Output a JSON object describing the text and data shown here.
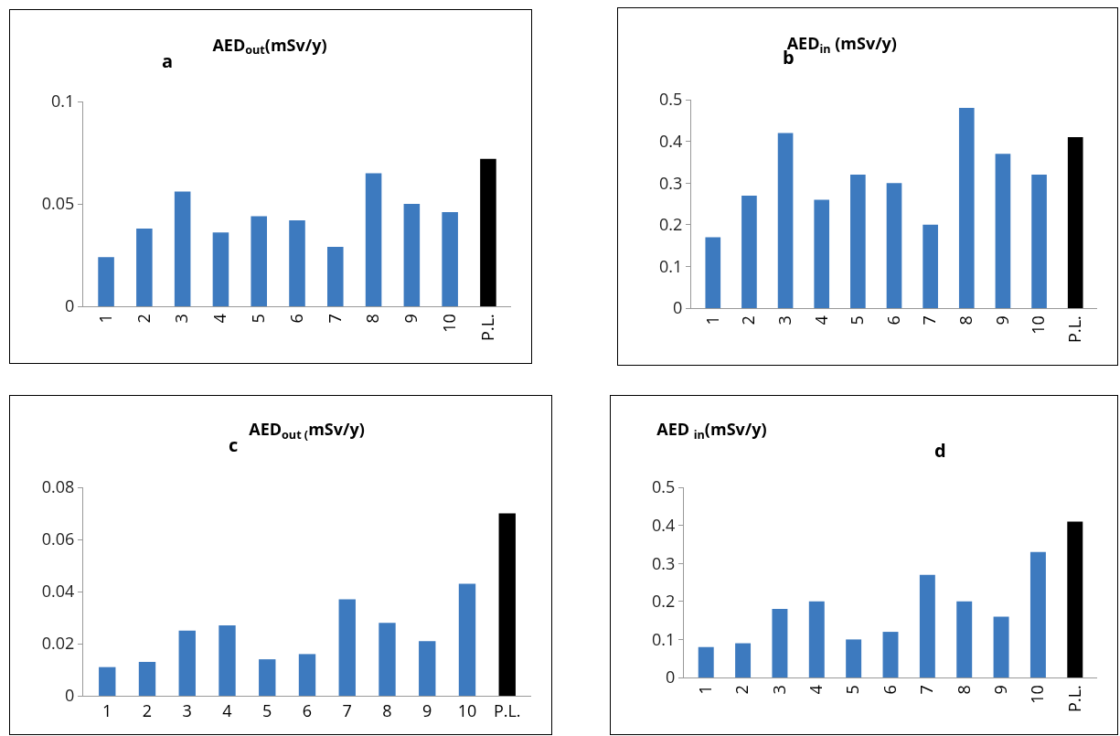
{
  "chart_data": [
    {
      "type": "bar",
      "title": "AED$_{out}$(mSv/y)",
      "annotations": [
        "a"
      ],
      "categories": [
        "1",
        "2",
        "3",
        "4",
        "5",
        "6",
        "7",
        "8",
        "9",
        "10",
        "P.L."
      ],
      "values": [
        0.024,
        0.038,
        0.056,
        0.036,
        0.044,
        0.042,
        0.029,
        0.065,
        0.05,
        0.046,
        0.072
      ],
      "colors": [
        "#3d7abf",
        "#3d7abf",
        "#3d7abf",
        "#3d7abf",
        "#3d7abf",
        "#3d7abf",
        "#3d7abf",
        "#3d7abf",
        "#3d7abf",
        "#3d7abf",
        "#000000"
      ],
      "ylim": [
        0,
        0.1
      ],
      "yticks": [
        0,
        0.05,
        0.1
      ],
      "grid": false,
      "legend": false
    },
    {
      "type": "bar",
      "title": "AED$_{in}$ (mSv/y)",
      "annotations": [
        "b"
      ],
      "categories": [
        "1",
        "2",
        "3",
        "4",
        "5",
        "6",
        "7",
        "8",
        "9",
        "10",
        "P.L."
      ],
      "values": [
        0.17,
        0.27,
        0.42,
        0.26,
        0.32,
        0.3,
        0.2,
        0.48,
        0.37,
        0.32,
        0.41
      ],
      "colors": [
        "#3d7abf",
        "#3d7abf",
        "#3d7abf",
        "#3d7abf",
        "#3d7abf",
        "#3d7abf",
        "#3d7abf",
        "#3d7abf",
        "#3d7abf",
        "#3d7abf",
        "#000000"
      ],
      "ylim": [
        0,
        0.5
      ],
      "yticks": [
        0,
        0.1,
        0.2,
        0.3,
        0.4,
        0.5
      ],
      "grid": false,
      "legend": false
    },
    {
      "type": "bar",
      "title": "AED$_{out (}$mSv/y)",
      "annotations": [
        "c"
      ],
      "categories": [
        "1",
        "2",
        "3",
        "4",
        "5",
        "6",
        "7",
        "8",
        "9",
        "10",
        "P.L."
      ],
      "values": [
        0.011,
        0.013,
        0.025,
        0.027,
        0.014,
        0.016,
        0.037,
        0.028,
        0.021,
        0.043,
        0.07
      ],
      "colors": [
        "#3d7abf",
        "#3d7abf",
        "#3d7abf",
        "#3d7abf",
        "#3d7abf",
        "#3d7abf",
        "#3d7abf",
        "#3d7abf",
        "#3d7abf",
        "#3d7abf",
        "#000000"
      ],
      "ylim": [
        0,
        0.08
      ],
      "yticks": [
        0,
        0.02,
        0.04,
        0.06,
        0.08
      ],
      "grid": false,
      "legend": false
    },
    {
      "type": "bar",
      "title": "AED $_{in}$(mSv/y)",
      "annotations": [
        "d"
      ],
      "categories": [
        "1",
        "2",
        "3",
        "4",
        "5",
        "6",
        "7",
        "8",
        "9",
        "10",
        "P.L."
      ],
      "values": [
        0.08,
        0.09,
        0.18,
        0.2,
        0.1,
        0.12,
        0.27,
        0.2,
        0.16,
        0.33,
        0.41
      ],
      "colors": [
        "#3d7abf",
        "#3d7abf",
        "#3d7abf",
        "#3d7abf",
        "#3d7abf",
        "#3d7abf",
        "#3d7abf",
        "#3d7abf",
        "#3d7abf",
        "#3d7abf",
        "#000000"
      ],
      "ylim": [
        0,
        0.5
      ],
      "yticks": [
        0,
        0.1,
        0.2,
        0.3,
        0.4,
        0.5
      ],
      "grid": false,
      "legend": false
    }
  ]
}
